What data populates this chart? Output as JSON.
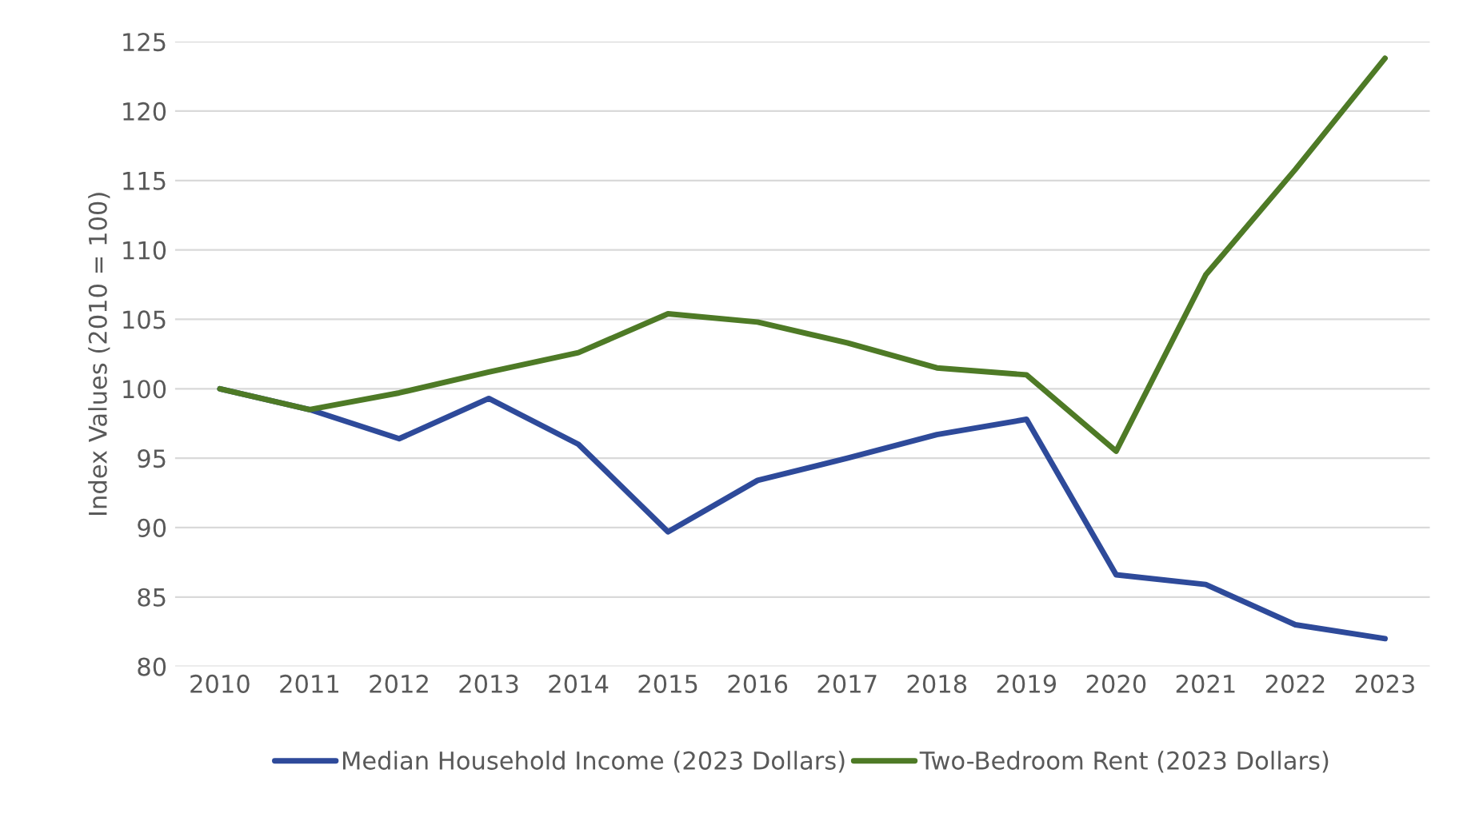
{
  "chart_data": {
    "type": "line",
    "ylabel": "Index Values (2010 = 100)",
    "categories": [
      "2010",
      "2011",
      "2012",
      "2013",
      "2014",
      "2015",
      "2016",
      "2017",
      "2018",
      "2019",
      "2020",
      "2021",
      "2022",
      "2023"
    ],
    "series": [
      {
        "name": "Median Household Income (2023 Dollars)",
        "color": "#2e4a9a",
        "values": [
          100,
          98.5,
          96.4,
          99.3,
          96,
          89.7,
          93.4,
          95,
          96.7,
          97.8,
          86.6,
          85.9,
          83,
          82
        ]
      },
      {
        "name": "Two-Bedroom Rent (2023 Dollars)",
        "color": "#4e7a26",
        "values": [
          100,
          98.5,
          99.7,
          101.2,
          102.6,
          105.4,
          104.8,
          103.3,
          101.5,
          101,
          95.5,
          108.2,
          115.8,
          123.8
        ]
      }
    ],
    "ylim": [
      80,
      125
    ],
    "yticks": [
      80,
      85,
      90,
      95,
      100,
      105,
      110,
      115,
      120,
      125
    ],
    "grid": "y",
    "legend": "bottom",
    "line_style": "solid"
  }
}
